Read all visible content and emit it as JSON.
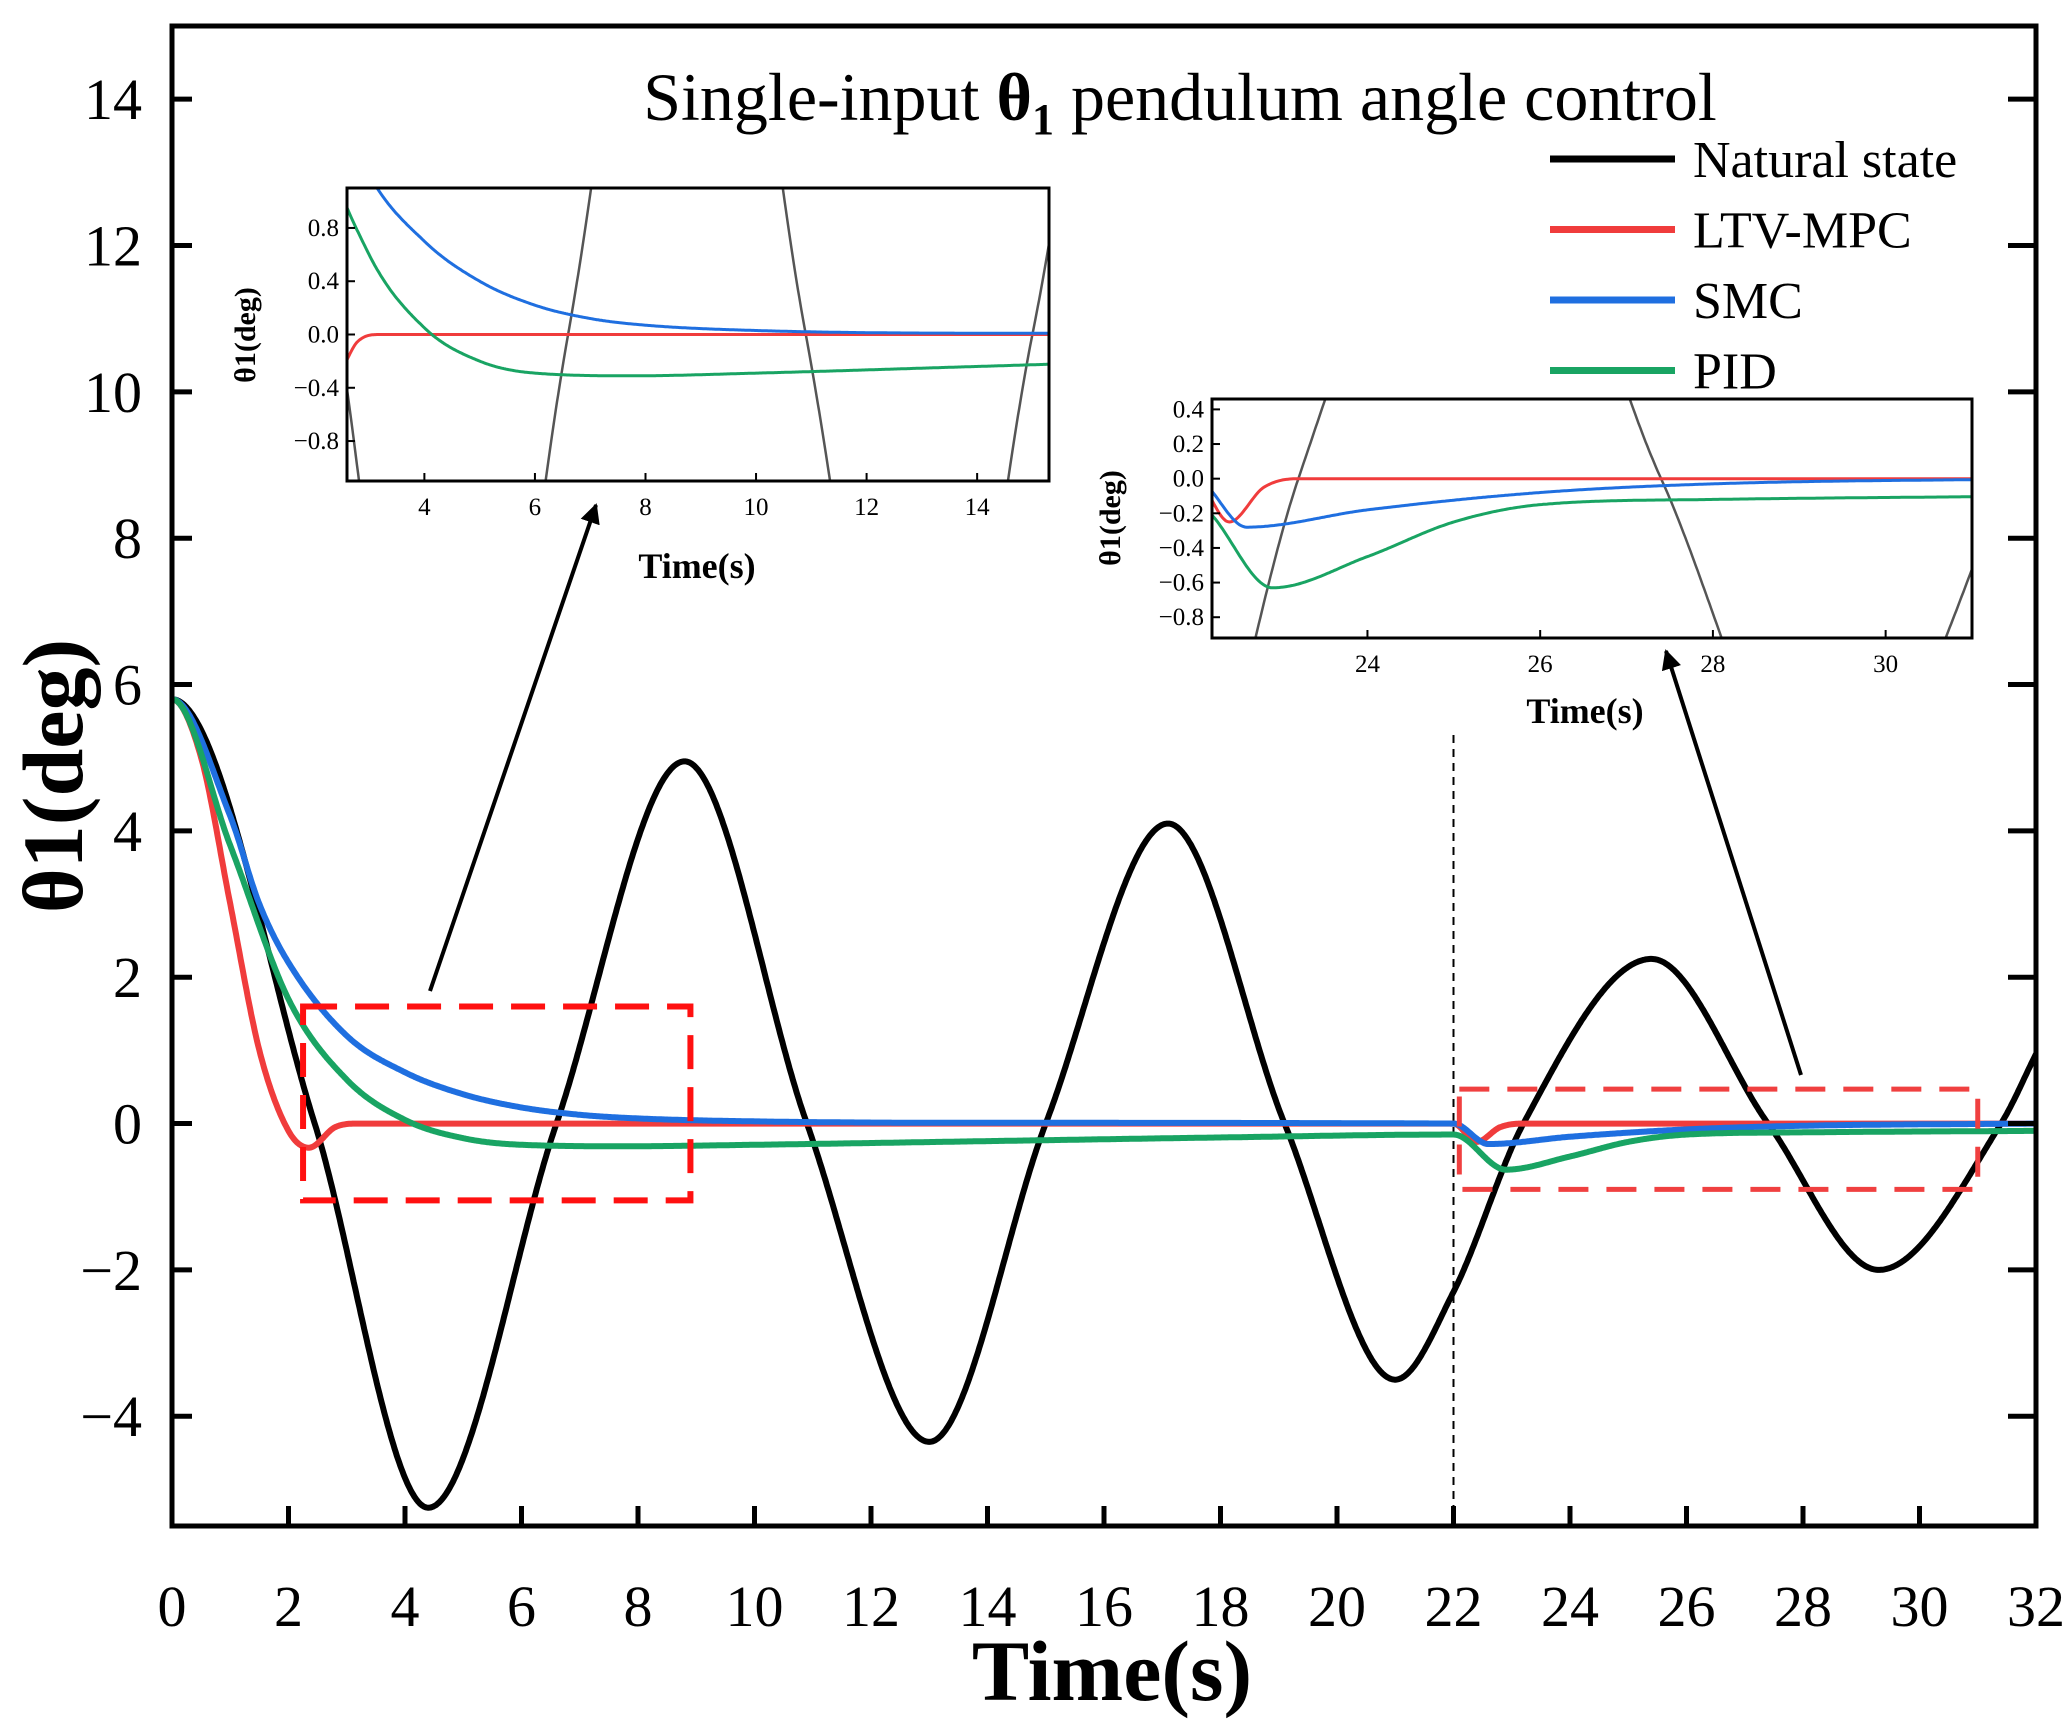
{
  "chart_data": {
    "type": "line",
    "title": {
      "prefix": "Single-input ",
      "symbol": "θ",
      "sub": "1",
      "suffix": " pendulum angle control"
    },
    "xlabel": "Time(s)",
    "ylabel": "θ1(deg)",
    "xlim": [
      0,
      32
    ],
    "ylim": [
      -5.5,
      15
    ],
    "xticks": [
      0,
      2,
      4,
      6,
      8,
      10,
      12,
      14,
      16,
      18,
      20,
      22,
      24,
      26,
      28,
      30,
      32
    ],
    "yticks": [
      -4,
      -2,
      0,
      2,
      4,
      6,
      8,
      10,
      12,
      14
    ],
    "grid": false,
    "legend_position": "top-right",
    "disturbance_time": 22,
    "series": [
      {
        "name": "Natural state",
        "color": "#000000",
        "points": [
          [
            0,
            5.8
          ],
          [
            2.45,
            0
          ],
          [
            4.4,
            -5.25
          ],
          [
            6.6,
            0
          ],
          [
            8.8,
            4.95
          ],
          [
            10.9,
            0
          ],
          [
            13.0,
            -4.35
          ],
          [
            15.0,
            0
          ],
          [
            17.1,
            4.1
          ],
          [
            19.1,
            0
          ],
          [
            21.0,
            -3.5
          ],
          [
            22.0,
            -2.3
          ],
          [
            23.2,
            0
          ],
          [
            25.4,
            2.25
          ],
          [
            27.4,
            0
          ],
          [
            29.3,
            -2.0
          ],
          [
            31.4,
            0
          ],
          [
            32,
            0.95
          ]
        ]
      },
      {
        "name": "LTV-MPC",
        "color": "#f03c3c",
        "points": [
          [
            0,
            5.8
          ],
          [
            0.5,
            5.0
          ],
          [
            1,
            3.0
          ],
          [
            1.5,
            1.0
          ],
          [
            2.0,
            -0.1
          ],
          [
            2.35,
            -0.33
          ],
          [
            2.8,
            -0.05
          ],
          [
            3.2,
            0
          ],
          [
            22,
            0
          ],
          [
            22.4,
            -0.25
          ],
          [
            22.8,
            -0.05
          ],
          [
            23.2,
            0
          ],
          [
            32,
            0
          ]
        ]
      },
      {
        "name": "SMC",
        "color": "#1f6fe0",
        "points": [
          [
            0,
            5.8
          ],
          [
            1,
            4.2
          ],
          [
            1.5,
            3.0
          ],
          [
            2,
            2.2
          ],
          [
            3,
            1.2
          ],
          [
            4,
            0.7
          ],
          [
            5,
            0.4
          ],
          [
            6,
            0.22
          ],
          [
            7,
            0.12
          ],
          [
            8,
            0.07
          ],
          [
            10,
            0.03
          ],
          [
            14,
            0.01
          ],
          [
            22,
            0
          ],
          [
            22.6,
            -0.28
          ],
          [
            24,
            -0.18
          ],
          [
            26,
            -0.08
          ],
          [
            28,
            -0.03
          ],
          [
            32,
            0
          ]
        ]
      },
      {
        "name": "PID",
        "color": "#19a463",
        "points": [
          [
            0,
            5.8
          ],
          [
            1,
            3.8
          ],
          [
            2,
            1.7
          ],
          [
            3,
            0.6
          ],
          [
            4,
            0.05
          ],
          [
            5,
            -0.2
          ],
          [
            6,
            -0.29
          ],
          [
            7.8,
            -0.31
          ],
          [
            10,
            -0.29
          ],
          [
            14,
            -0.24
          ],
          [
            18,
            -0.19
          ],
          [
            22,
            -0.15
          ],
          [
            22.9,
            -0.63
          ],
          [
            24,
            -0.45
          ],
          [
            25,
            -0.25
          ],
          [
            26,
            -0.15
          ],
          [
            28,
            -0.12
          ],
          [
            32,
            -0.1
          ]
        ]
      }
    ],
    "zoom_regions": [
      {
        "xlim": [
          2.25,
          8.9
        ],
        "ylim": [
          -1.05,
          1.6
        ]
      },
      {
        "xlim": [
          22.1,
          31.0
        ],
        "ylim": [
          -0.9,
          0.47
        ]
      }
    ],
    "insets": [
      {
        "xlabel": "Time(s)",
        "ylabel": "θ1(deg)",
        "xlim": [
          2.6,
          15.3
        ],
        "ylim": [
          -1.1,
          1.1
        ],
        "xticks": [
          4,
          6,
          8,
          10,
          12,
          14
        ],
        "yticks": [
          -0.8,
          -0.4,
          0.0,
          0.4,
          0.8
        ],
        "xtick_labels": [
          "4",
          "6",
          "8",
          "10",
          "12",
          "14"
        ],
        "ytick_labels": [
          "−0.8",
          "−0.4",
          "0.0",
          "0.4",
          "0.8"
        ]
      },
      {
        "xlabel": "Time(s)",
        "ylabel": "θ1(deg)",
        "xlim": [
          22.2,
          31.0
        ],
        "ylim": [
          -0.92,
          0.46
        ],
        "xticks": [
          24,
          26,
          28,
          30
        ],
        "yticks": [
          -0.8,
          -0.6,
          -0.4,
          -0.2,
          0.0,
          0.2,
          0.4
        ],
        "xtick_labels": [
          "24",
          "26",
          "28",
          "30"
        ],
        "ytick_labels": [
          "−0.8",
          "−0.6",
          "−0.4",
          "−0.2",
          "0.0",
          "0.2",
          "0.4"
        ]
      }
    ]
  }
}
